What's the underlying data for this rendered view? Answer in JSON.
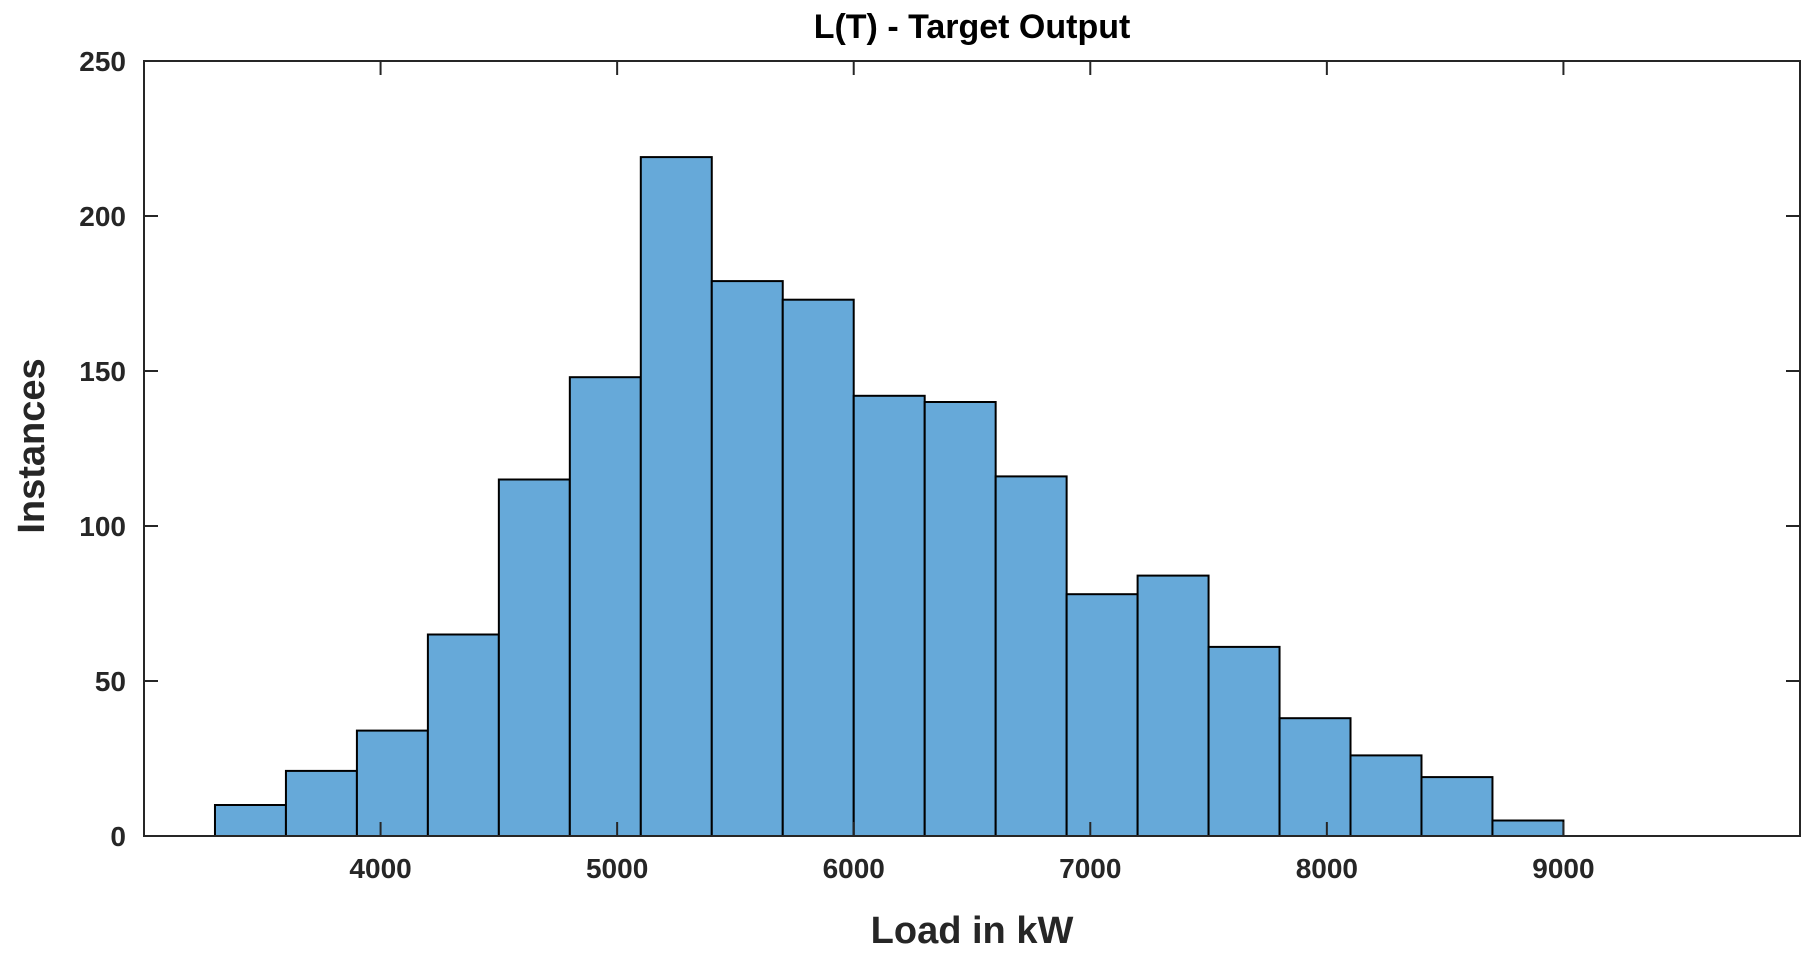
{
  "chart_data": {
    "type": "bar",
    "title": "L(T) - Target Output",
    "xlabel": "Load in kW",
    "ylabel": "Instances",
    "xlim": [
      3000,
      10000
    ],
    "ylim": [
      0,
      250
    ],
    "xticks": [
      "4000",
      "5000",
      "6000",
      "7000",
      "8000",
      "9000"
    ],
    "yticks": [
      "0",
      "50",
      "100",
      "150",
      "200",
      "250"
    ],
    "grid": false,
    "legend": "none",
    "bin_width": 300,
    "bins": [
      {
        "start": 3300,
        "end": 3600,
        "value": 10
      },
      {
        "start": 3600,
        "end": 3900,
        "value": 21
      },
      {
        "start": 3900,
        "end": 4200,
        "value": 34
      },
      {
        "start": 4200,
        "end": 4500,
        "value": 65
      },
      {
        "start": 4500,
        "end": 4800,
        "value": 115
      },
      {
        "start": 4800,
        "end": 5100,
        "value": 148
      },
      {
        "start": 5100,
        "end": 5400,
        "value": 219
      },
      {
        "start": 5400,
        "end": 5700,
        "value": 179
      },
      {
        "start": 5700,
        "end": 6000,
        "value": 173
      },
      {
        "start": 6000,
        "end": 6300,
        "value": 142
      },
      {
        "start": 6300,
        "end": 6600,
        "value": 140
      },
      {
        "start": 6600,
        "end": 6900,
        "value": 116
      },
      {
        "start": 6900,
        "end": 7200,
        "value": 78
      },
      {
        "start": 7200,
        "end": 7500,
        "value": 84
      },
      {
        "start": 7500,
        "end": 7800,
        "value": 61
      },
      {
        "start": 7800,
        "end": 8100,
        "value": 38
      },
      {
        "start": 8100,
        "end": 8400,
        "value": 26
      },
      {
        "start": 8400,
        "end": 8700,
        "value": 19
      },
      {
        "start": 8700,
        "end": 9000,
        "value": 5
      }
    ],
    "colors": {
      "bar_fill": "#66A9D9",
      "bar_edge": "#000000",
      "axis": "#262626"
    }
  }
}
